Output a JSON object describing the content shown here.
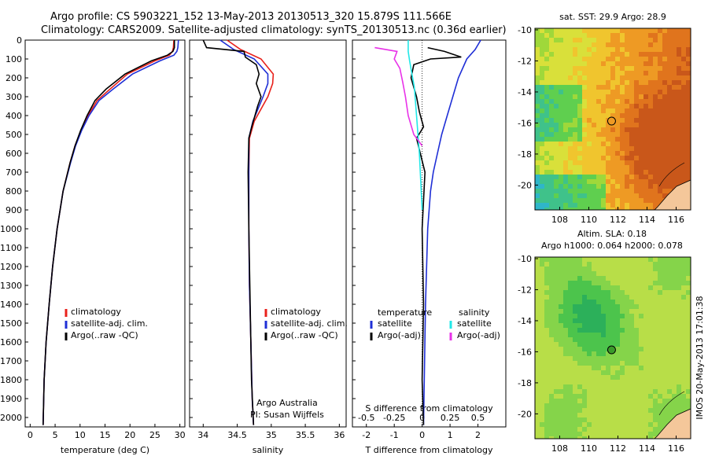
{
  "header": {
    "line1": "Argo profile: CS 5903221_152 13-May-2013 20130513_320 15.879S 111.566E",
    "line2": "Climatology: CARS2009. Satellite-adjusted climatology: synTS_20130513.nc (0.36d earlier)"
  },
  "colors": {
    "climatology": "#e8211b",
    "satellite": "#1f2fd6",
    "argo": "#000000",
    "sat_salinity": "#22e8e8",
    "argo_salinity": "#e832e8",
    "land": "#f4c79a",
    "marker": "#3a9a2a"
  },
  "chart_data": [
    {
      "type": "line",
      "panel": "temperature",
      "xlabel": "temperature (deg C)",
      "ylabel": "",
      "xlim": [
        -1,
        31
      ],
      "ylim": [
        2050,
        0
      ],
      "xticks": [
        0,
        5,
        10,
        15,
        20,
        25,
        30
      ],
      "yticks": [
        0,
        100,
        200,
        300,
        400,
        500,
        600,
        700,
        800,
        900,
        1000,
        1100,
        1200,
        1300,
        1400,
        1500,
        1600,
        1700,
        1800,
        1900,
        2000
      ],
      "legend": [
        "climatology",
        "satellite-adj. clim.",
        "Argo(..raw -QC)"
      ],
      "series": [
        {
          "name": "climatology",
          "x": [
            28.8,
            28.7,
            28.5,
            27.9,
            25.0,
            19.5,
            16.0,
            13.4,
            11.6,
            10.2,
            9.0,
            8.0,
            6.6,
            5.4,
            4.5,
            3.8,
            3.2,
            2.8,
            2.6
          ],
          "y": [
            0,
            40,
            60,
            80,
            110,
            180,
            260,
            320,
            400,
            480,
            560,
            650,
            800,
            1000,
            1200,
            1400,
            1600,
            1800,
            2040
          ]
        },
        {
          "name": "satellite-adj. clim.",
          "x": [
            29.7,
            29.6,
            29.4,
            28.8,
            26.0,
            20.5,
            16.6,
            13.8,
            11.8,
            10.3,
            9.1,
            8.1,
            6.6,
            5.4,
            4.5,
            3.8,
            3.2,
            2.8,
            2.6
          ],
          "y": [
            0,
            40,
            60,
            80,
            110,
            180,
            260,
            320,
            400,
            480,
            560,
            650,
            800,
            1000,
            1200,
            1400,
            1600,
            1800,
            2040
          ]
        },
        {
          "name": "Argo(..raw -QC)",
          "x": [
            28.9,
            28.9,
            28.6,
            27.5,
            24.3,
            19.0,
            15.2,
            13.0,
            11.4,
            10.1,
            9.0,
            8.0,
            6.6,
            5.4,
            4.5,
            3.8,
            3.2,
            2.8,
            2.6
          ],
          "y": [
            0,
            40,
            60,
            80,
            110,
            180,
            260,
            320,
            400,
            480,
            560,
            650,
            800,
            1000,
            1200,
            1400,
            1600,
            1800,
            2040
          ]
        }
      ]
    },
    {
      "type": "line",
      "panel": "salinity",
      "xlabel": "salinity",
      "xlim": [
        33.8,
        36.1
      ],
      "ylim": [
        2050,
        0
      ],
      "xticks": [
        34,
        34.5,
        35,
        35.5,
        36
      ],
      "legend": [
        "climatology",
        "satellite-adj. clim.",
        "Argo(..raw -QC)"
      ],
      "annotation": [
        "Argo Australia",
        "PI: Susan Wijffels"
      ],
      "series": [
        {
          "name": "climatology",
          "x": [
            34.35,
            34.55,
            34.85,
            35.03,
            35.02,
            34.95,
            34.75,
            34.68,
            34.67,
            34.67,
            34.68,
            34.7,
            34.72,
            34.74
          ],
          "y": [
            0,
            50,
            100,
            180,
            230,
            300,
            430,
            520,
            700,
            1000,
            1300,
            1600,
            1900,
            2040
          ]
        },
        {
          "name": "satellite-adj. clim.",
          "x": [
            34.25,
            34.45,
            34.75,
            34.95,
            34.95,
            34.88,
            34.73,
            34.67,
            34.67,
            34.67,
            34.68,
            34.7,
            34.72,
            34.74
          ],
          "y": [
            0,
            50,
            100,
            180,
            230,
            300,
            430,
            520,
            700,
            1000,
            1300,
            1600,
            1900,
            2040
          ]
        },
        {
          "name": "Argo(..raw -QC)",
          "x": [
            34.0,
            34.05,
            34.6,
            34.62,
            34.78,
            34.82,
            34.78,
            34.85,
            34.8,
            34.76,
            34.72,
            34.67,
            34.66,
            34.67,
            34.69,
            34.71,
            34.74
          ],
          "y": [
            0,
            40,
            60,
            90,
            130,
            180,
            230,
            300,
            350,
            400,
            450,
            520,
            700,
            1000,
            1400,
            1800,
            2040
          ]
        }
      ]
    },
    {
      "type": "line",
      "panel": "difference from climatology",
      "xlabel": "T difference from climatology",
      "xlabel_top": "S difference from climatology",
      "xlim": [
        -2.5,
        3.0
      ],
      "ylim": [
        2050,
        0
      ],
      "xticks": [
        -2,
        -1,
        0,
        1,
        2
      ],
      "xticks_top": [
        -0.5,
        -0.25,
        0,
        0.25,
        0.5
      ],
      "legend_titles": [
        "temperature",
        "salinity"
      ],
      "legend": [
        "satellite",
        "Argo(-adj)",
        "satellite",
        "Argo(-adj)"
      ],
      "series": [
        {
          "name": "temperature satellite",
          "x": [
            2.1,
            1.9,
            1.6,
            1.3,
            1.1,
            0.9,
            0.7,
            0.55,
            0.4,
            0.3,
            0.2,
            0.12,
            0.05
          ],
          "y": [
            0,
            50,
            100,
            200,
            300,
            400,
            500,
            600,
            700,
            800,
            1000,
            1400,
            2040
          ]
        },
        {
          "name": "temperature Argo(-adj)",
          "x": [
            0.2,
            0.8,
            1.4,
            0.3,
            -0.3,
            -0.4,
            -0.2,
            -0.1,
            0.05,
            -0.2,
            0.1,
            0.0,
            0.05,
            0.0,
            0.05
          ],
          "y": [
            40,
            60,
            90,
            100,
            130,
            200,
            300,
            380,
            460,
            520,
            700,
            1000,
            1400,
            1800,
            2040
          ]
        },
        {
          "name": "salinity satellite",
          "x": [
            -0.5,
            -0.5,
            -0.45,
            -0.38,
            -0.28,
            -0.2,
            -0.1,
            0.0
          ],
          "y": [
            0,
            60,
            110,
            170,
            250,
            400,
            600,
            900
          ]
        },
        {
          "name": "salinity Argo(-adj)",
          "x": [
            -1.7,
            -0.9,
            -1.0,
            -0.8,
            -0.7,
            -0.6,
            -0.5,
            -0.3,
            0.0
          ],
          "y": [
            40,
            60,
            100,
            150,
            220,
            300,
            400,
            500,
            560
          ]
        }
      ]
    },
    {
      "type": "heatmap",
      "panel": "sat. SST map",
      "title": "sat. SST: 29.9 Argo: 28.9",
      "xticks": [
        108,
        110,
        112,
        114,
        116
      ],
      "yticks": [
        -10,
        -12,
        -14,
        -16,
        -18,
        -20
      ],
      "xlim": [
        106.3,
        117
      ],
      "ylim": [
        -21.6,
        -9.9
      ],
      "marker": [
        111.566,
        -15.879
      ]
    },
    {
      "type": "heatmap",
      "panel": "altimetry SLA map",
      "title": "Altim. SLA: 0.18",
      "subtitle": "Argo h1000: 0.064 h2000: 0.078",
      "xticks": [
        108,
        110,
        112,
        114,
        116
      ],
      "yticks": [
        -10,
        -12,
        -14,
        -16,
        -18,
        -20
      ],
      "xlim": [
        106.3,
        117
      ],
      "ylim": [
        -21.6,
        -9.9
      ],
      "marker": [
        111.566,
        -15.879
      ]
    }
  ],
  "footer": {
    "timestamp": "IMOS 20-May-2013 17:01:38"
  }
}
